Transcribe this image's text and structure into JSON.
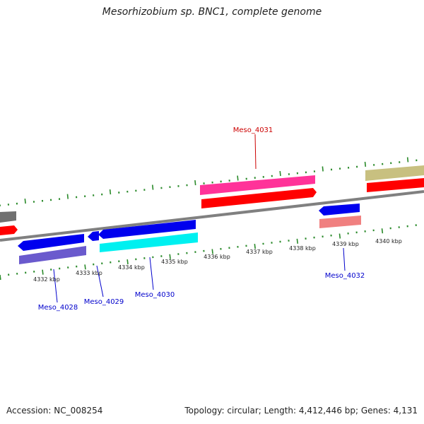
{
  "title": "Mesorhizobium sp. BNC1, complete genome",
  "footer": {
    "accession": "Accession: NC_008254",
    "summary": "Topology: circular; Length: 4,412,446 bp; Genes: 4,131"
  },
  "colors": {
    "backbone": "#808080",
    "tick": "#2a8a2a",
    "forward_label": "#cc0000",
    "reverse_label": "#0000cc",
    "red": "#ff0000",
    "magenta": "#ff3399",
    "khaki": "#c8c080",
    "gray": "#707070",
    "blue": "#0000ee",
    "slateblue": "#6a5acd",
    "cyan": "#00f0f0",
    "salmon": "#f08080"
  },
  "axis_labels": [
    "4332 kbp",
    "4333 kbp",
    "4334 kbp",
    "4335 kbp",
    "4336 kbp",
    "4337 kbp",
    "4338 kbp",
    "4339 kbp",
    "4340 kbp"
  ],
  "genes": [
    {
      "label": "Meso_4031",
      "strand": "forward"
    },
    {
      "label": "Meso_4032",
      "strand": "reverse"
    },
    {
      "label": "Meso_4028",
      "strand": "reverse"
    },
    {
      "label": "Meso_4029",
      "strand": "reverse"
    },
    {
      "label": "Meso_4030",
      "strand": "reverse"
    }
  ]
}
